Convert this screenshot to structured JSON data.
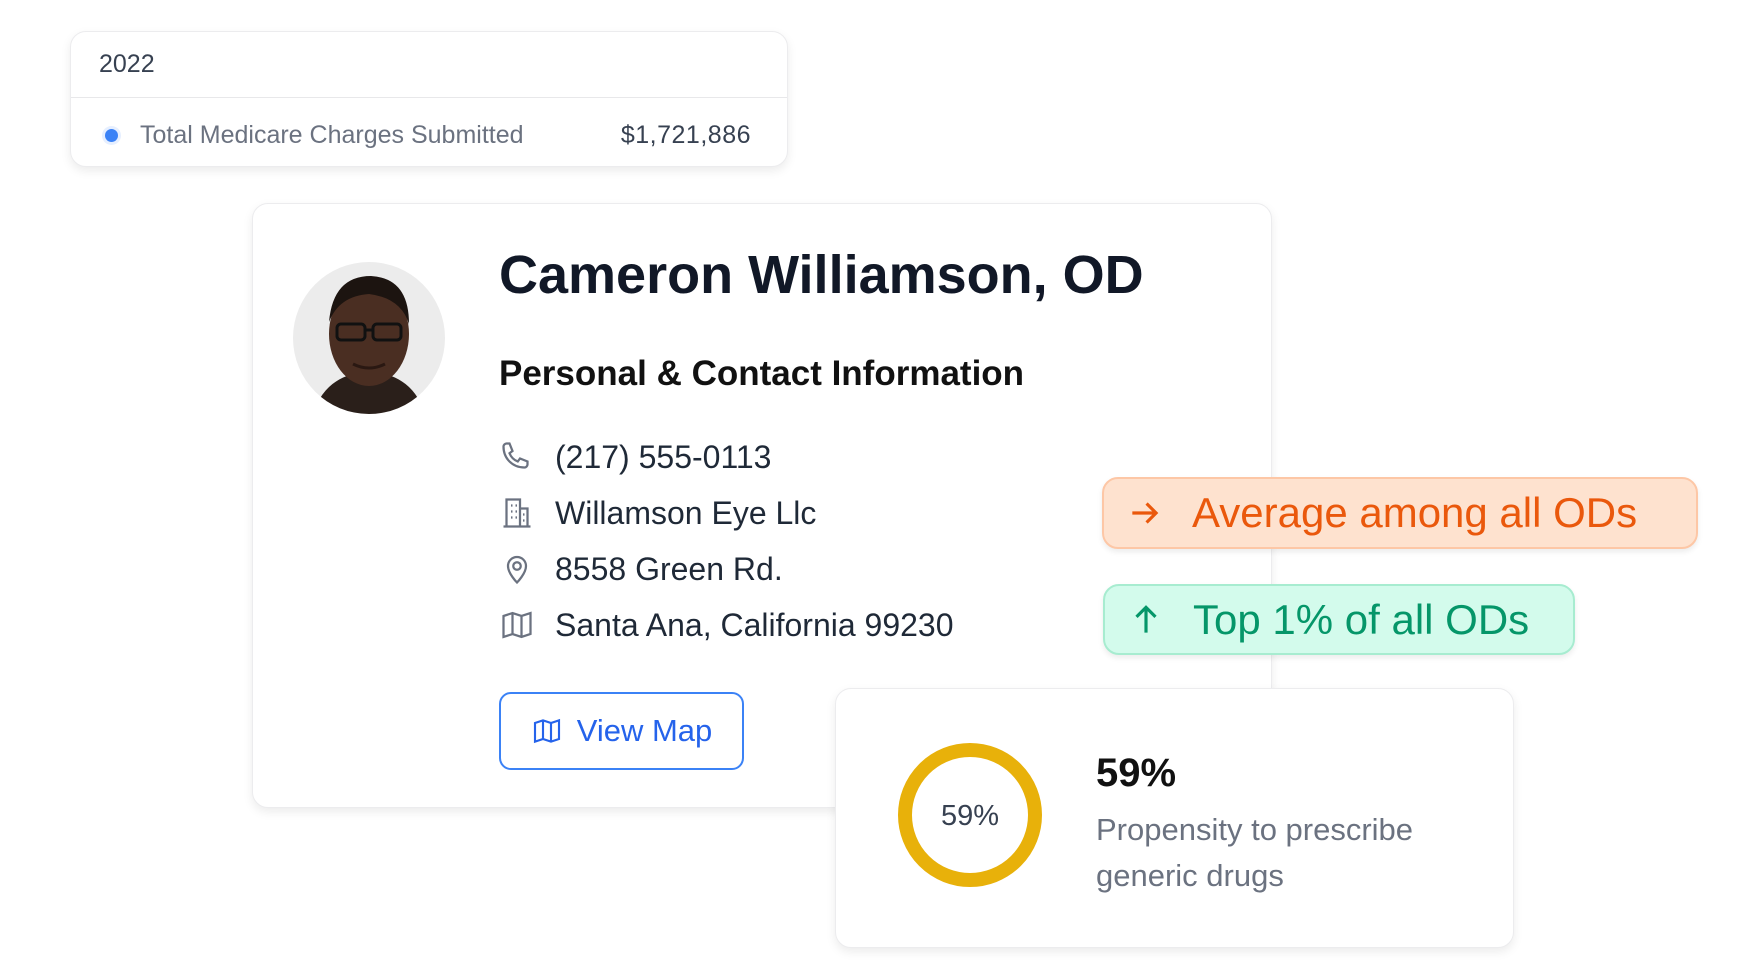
{
  "summary": {
    "year": "2022",
    "metric_label": "Total Medicare Charges Submitted",
    "metric_value": "$1,721,886",
    "dot_color": "#3b82f6"
  },
  "profile": {
    "name": "Cameron Williamson, OD",
    "section_title": "Personal & Contact Information",
    "contacts": [
      {
        "icon": "phone-icon",
        "text": "(217) 555-0113"
      },
      {
        "icon": "building-icon",
        "text": "Willamson Eye Llc"
      },
      {
        "icon": "map-pin-icon",
        "text": "8558 Green Rd."
      },
      {
        "icon": "map-icon",
        "text": "Santa Ana, California 99230"
      }
    ],
    "view_map_label": "View Map"
  },
  "badges": {
    "average": {
      "icon": "arrow-right-icon",
      "label": "Average among all ODs",
      "color": "#ea580c"
    },
    "top": {
      "icon": "arrow-up-icon",
      "label": "Top 1% of all ODs",
      "color": "#059669"
    }
  },
  "stat": {
    "ring_label": "59%",
    "value": "59%",
    "percent": 59,
    "description": "Propensity to prescribe generic drugs",
    "ring_color": "#e8b10a"
  }
}
